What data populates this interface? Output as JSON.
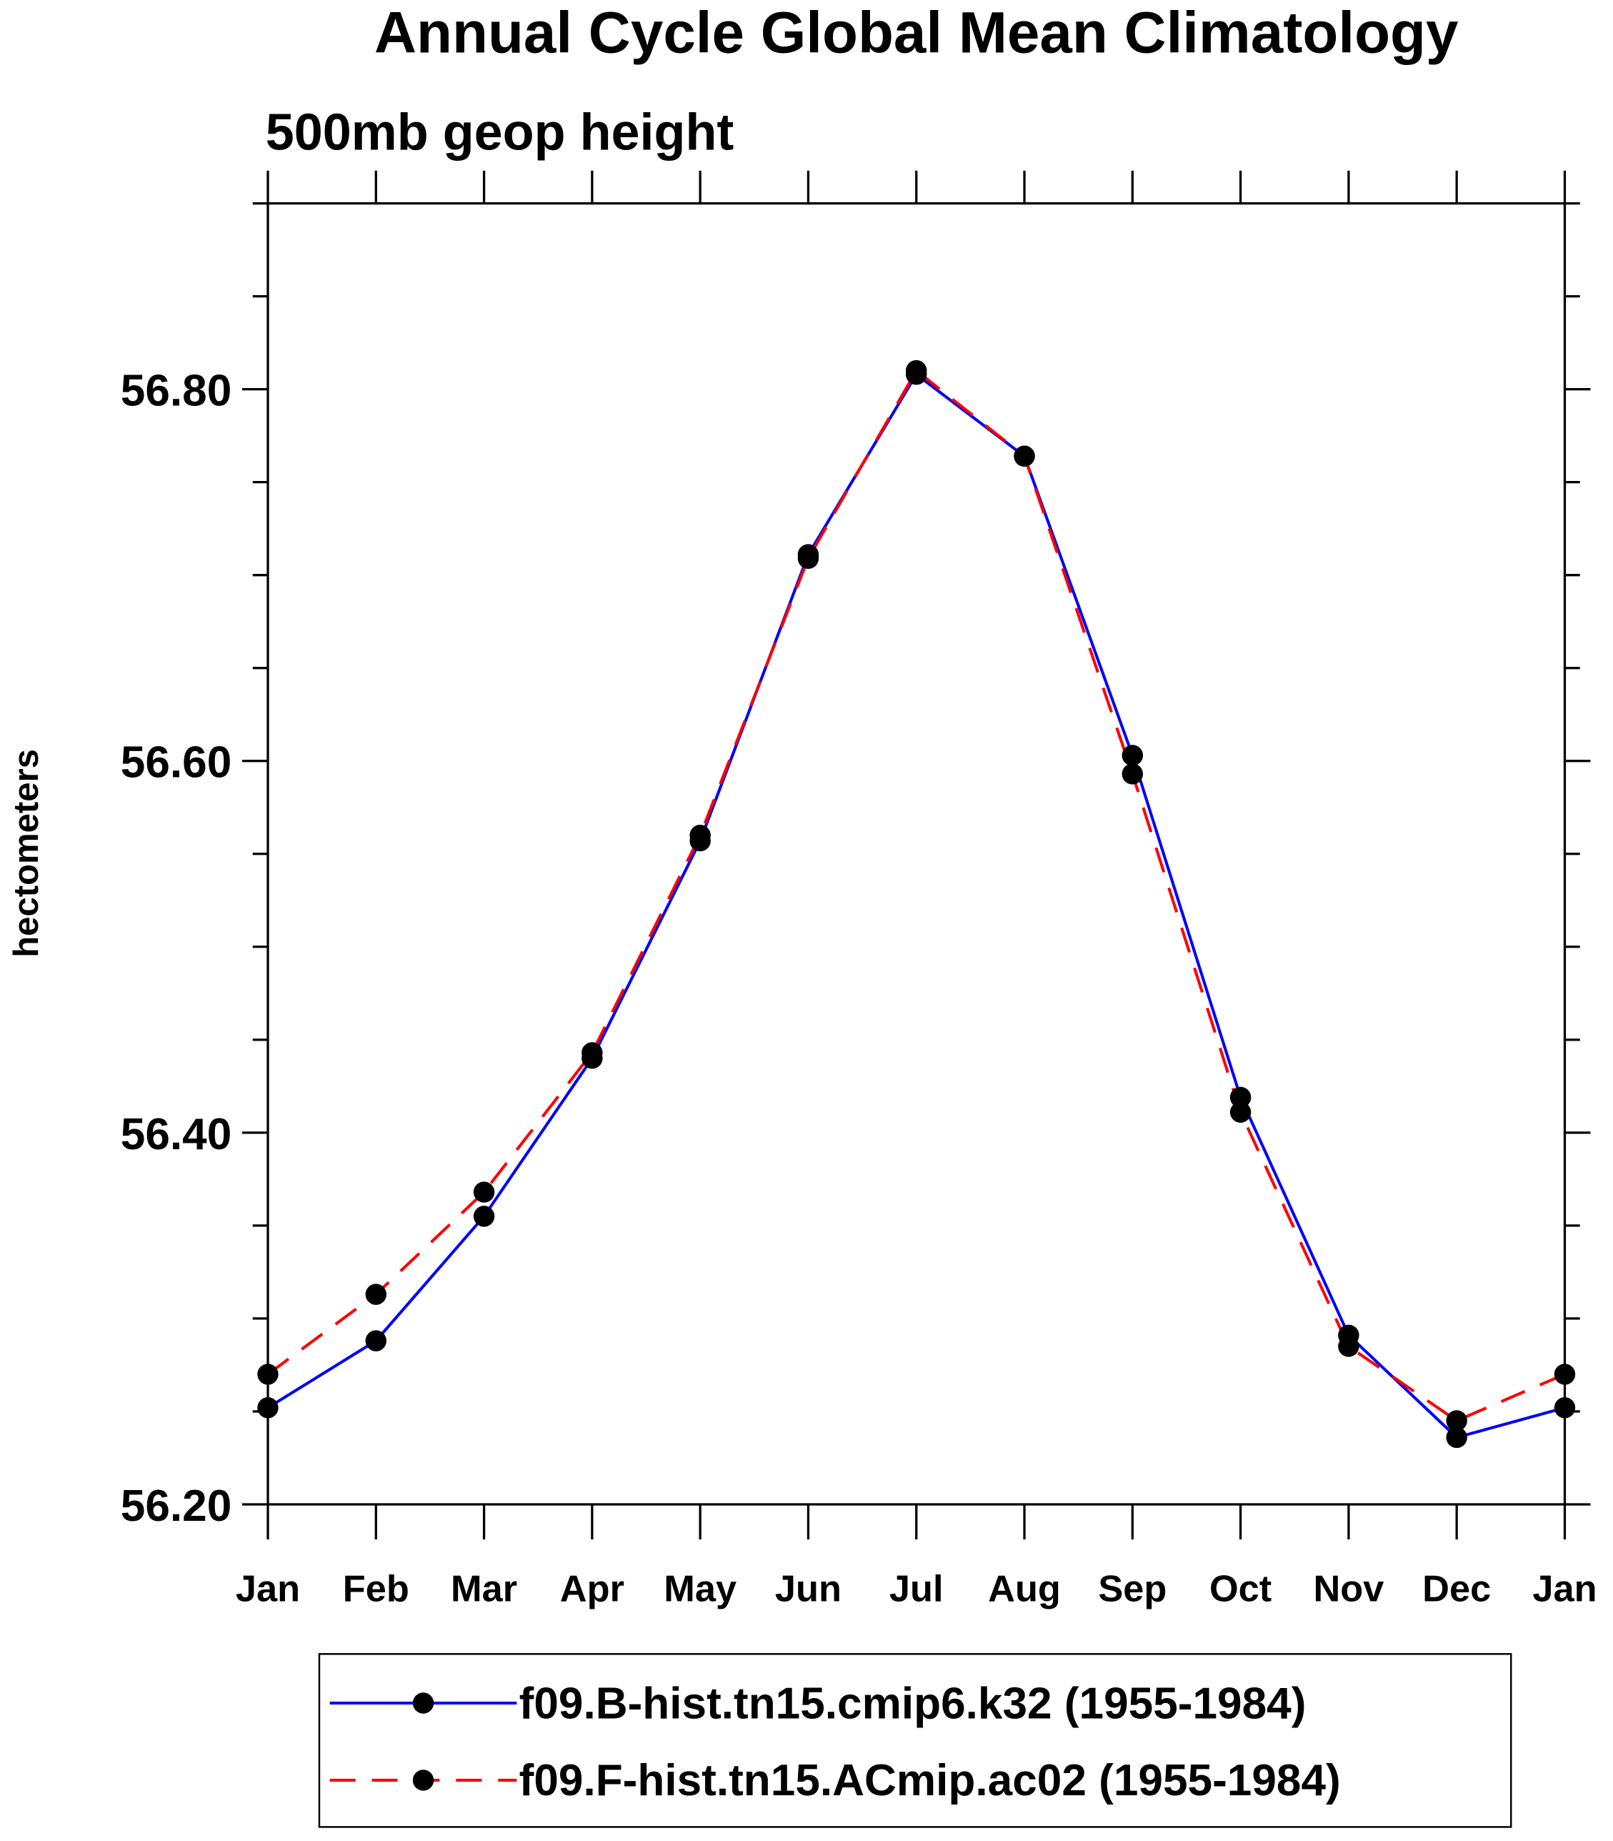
{
  "chart_data": {
    "type": "line",
    "title": "Annual Cycle Global Mean Climatology",
    "subtitle": "500mb geop height",
    "xlabel": "",
    "ylabel": "hectometers",
    "categories": [
      "Jan",
      "Feb",
      "Mar",
      "Apr",
      "May",
      "Jun",
      "Jul",
      "Aug",
      "Sep",
      "Oct",
      "Nov",
      "Dec",
      "Jan"
    ],
    "ylim": [
      56.2,
      56.9
    ],
    "yticks": [
      56.2,
      56.4,
      56.6,
      56.8
    ],
    "ytick_labels": [
      "56.20",
      "56.40",
      "56.60",
      "56.80"
    ],
    "yminor_step": 0.05,
    "grid": false,
    "legend_position": "bottom",
    "series": [
      {
        "name": "f09.B-hist.tn15.cmip6.k32 (1955-1984)",
        "color": "#0000ff",
        "dash": "solid",
        "values": [
          56.252,
          56.288,
          56.355,
          56.44,
          56.557,
          56.711,
          56.808,
          56.764,
          56.603,
          56.419,
          56.291,
          56.236,
          56.252
        ]
      },
      {
        "name": "f09.F-hist.tn15.ACmip.ac02 (1955-1984)",
        "color": "#ff0000",
        "dash": "dashed",
        "values": [
          56.27,
          56.313,
          56.368,
          56.443,
          56.56,
          56.709,
          56.81,
          56.764,
          56.593,
          56.411,
          56.285,
          56.245,
          56.27
        ]
      }
    ]
  }
}
